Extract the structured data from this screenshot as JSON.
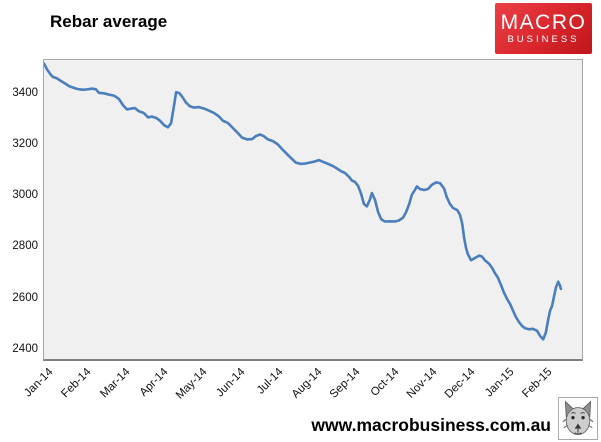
{
  "header": {
    "title": "Rebar average"
  },
  "logo": {
    "line1": "MACRO",
    "line2": "BUSINESS",
    "bg_top": "#ea4046",
    "bg_bottom": "#bf161c",
    "text_color": "#ffffff"
  },
  "footer": {
    "website": "www.macrobusiness.com.au",
    "icon": "wolf-head-icon"
  },
  "chart_data": {
    "type": "line",
    "title": "Rebar average",
    "series_name": "Rebar average",
    "line_color": "#4a7ebc",
    "plot_bg": "#f0f0f0",
    "grid": false,
    "legend": false,
    "xlabel": "",
    "ylabel": "",
    "x_tick_labels": [
      "Jan-14",
      "Feb-14",
      "Mar-14",
      "Apr-14",
      "May-14",
      "Jun-14",
      "Jul-14",
      "Aug-14",
      "Sep-14",
      "Oct-14",
      "Nov-14",
      "Dec-14",
      "Jan-15",
      "Feb-15"
    ],
    "y_ticks": [
      2400,
      2600,
      2800,
      3000,
      3200,
      3400
    ],
    "ylim": [
      2365,
      3535
    ],
    "xlim_months": [
      0,
      14
    ],
    "x_unit": "months since Jan-2014",
    "points": [
      [
        0.0,
        3520
      ],
      [
        0.08,
        3497
      ],
      [
        0.16,
        3480
      ],
      [
        0.23,
        3468
      ],
      [
        0.34,
        3462
      ],
      [
        0.44,
        3452
      ],
      [
        0.55,
        3442
      ],
      [
        0.65,
        3432
      ],
      [
        0.76,
        3426
      ],
      [
        0.86,
        3421
      ],
      [
        0.99,
        3418
      ],
      [
        1.12,
        3419
      ],
      [
        1.25,
        3422
      ],
      [
        1.35,
        3420
      ],
      [
        1.43,
        3406
      ],
      [
        1.56,
        3404
      ],
      [
        1.69,
        3399
      ],
      [
        1.82,
        3395
      ],
      [
        1.95,
        3382
      ],
      [
        2.06,
        3357
      ],
      [
        2.16,
        3341
      ],
      [
        2.27,
        3344
      ],
      [
        2.37,
        3346
      ],
      [
        2.47,
        3334
      ],
      [
        2.6,
        3327
      ],
      [
        2.71,
        3310
      ],
      [
        2.81,
        3313
      ],
      [
        2.92,
        3308
      ],
      [
        3.02,
        3297
      ],
      [
        3.13,
        3279
      ],
      [
        3.23,
        3271
      ],
      [
        3.31,
        3288
      ],
      [
        3.39,
        3360
      ],
      [
        3.44,
        3408
      ],
      [
        3.52,
        3405
      ],
      [
        3.59,
        3392
      ],
      [
        3.7,
        3367
      ],
      [
        3.8,
        3353
      ],
      [
        3.91,
        3348
      ],
      [
        4.04,
        3350
      ],
      [
        4.17,
        3344
      ],
      [
        4.3,
        3336
      ],
      [
        4.43,
        3327
      ],
      [
        4.56,
        3313
      ],
      [
        4.66,
        3297
      ],
      [
        4.79,
        3288
      ],
      [
        4.9,
        3271
      ],
      [
        5.03,
        3251
      ],
      [
        5.16,
        3231
      ],
      [
        5.29,
        3224
      ],
      [
        5.42,
        3225
      ],
      [
        5.52,
        3237
      ],
      [
        5.63,
        3243
      ],
      [
        5.73,
        3236
      ],
      [
        5.83,
        3224
      ],
      [
        5.96,
        3217
      ],
      [
        6.09,
        3204
      ],
      [
        6.2,
        3186
      ],
      [
        6.33,
        3166
      ],
      [
        6.46,
        3147
      ],
      [
        6.56,
        3133
      ],
      [
        6.69,
        3128
      ],
      [
        6.82,
        3130
      ],
      [
        6.95,
        3134
      ],
      [
        7.06,
        3138
      ],
      [
        7.16,
        3143
      ],
      [
        7.27,
        3136
      ],
      [
        7.4,
        3128
      ],
      [
        7.53,
        3119
      ],
      [
        7.63,
        3110
      ],
      [
        7.73,
        3100
      ],
      [
        7.84,
        3092
      ],
      [
        7.94,
        3078
      ],
      [
        8.02,
        3063
      ],
      [
        8.1,
        3058
      ],
      [
        8.18,
        3042
      ],
      [
        8.26,
        3010
      ],
      [
        8.33,
        2972
      ],
      [
        8.41,
        2962
      ],
      [
        8.49,
        2990
      ],
      [
        8.54,
        3014
      ],
      [
        8.62,
        2988
      ],
      [
        8.7,
        2940
      ],
      [
        8.78,
        2912
      ],
      [
        8.88,
        2903
      ],
      [
        9.01,
        2904
      ],
      [
        9.14,
        2903
      ],
      [
        9.24,
        2907
      ],
      [
        9.35,
        2918
      ],
      [
        9.43,
        2940
      ],
      [
        9.51,
        2972
      ],
      [
        9.58,
        3008
      ],
      [
        9.64,
        3022
      ],
      [
        9.71,
        3040
      ],
      [
        9.79,
        3030
      ],
      [
        9.9,
        3026
      ],
      [
        10.0,
        3030
      ],
      [
        10.1,
        3046
      ],
      [
        10.21,
        3056
      ],
      [
        10.31,
        3053
      ],
      [
        10.42,
        3032
      ],
      [
        10.49,
        2998
      ],
      [
        10.57,
        2972
      ],
      [
        10.65,
        2956
      ],
      [
        10.76,
        2948
      ],
      [
        10.83,
        2930
      ],
      [
        10.89,
        2895
      ],
      [
        10.94,
        2840
      ],
      [
        10.99,
        2800
      ],
      [
        11.04,
        2775
      ],
      [
        11.12,
        2752
      ],
      [
        11.22,
        2760
      ],
      [
        11.33,
        2770
      ],
      [
        11.41,
        2766
      ],
      [
        11.48,
        2752
      ],
      [
        11.59,
        2738
      ],
      [
        11.67,
        2722
      ],
      [
        11.74,
        2702
      ],
      [
        11.82,
        2684
      ],
      [
        11.9,
        2655
      ],
      [
        11.98,
        2625
      ],
      [
        12.06,
        2600
      ],
      [
        12.14,
        2580
      ],
      [
        12.21,
        2556
      ],
      [
        12.29,
        2530
      ],
      [
        12.37,
        2510
      ],
      [
        12.45,
        2495
      ],
      [
        12.53,
        2486
      ],
      [
        12.63,
        2482
      ],
      [
        12.73,
        2484
      ],
      [
        12.84,
        2476
      ],
      [
        12.92,
        2456
      ],
      [
        13.0,
        2443
      ],
      [
        13.07,
        2470
      ],
      [
        13.13,
        2520
      ],
      [
        13.18,
        2556
      ],
      [
        13.23,
        2572
      ],
      [
        13.28,
        2610
      ],
      [
        13.33,
        2645
      ],
      [
        13.39,
        2668
      ],
      [
        13.44,
        2652
      ],
      [
        13.46,
        2640
      ]
    ]
  }
}
